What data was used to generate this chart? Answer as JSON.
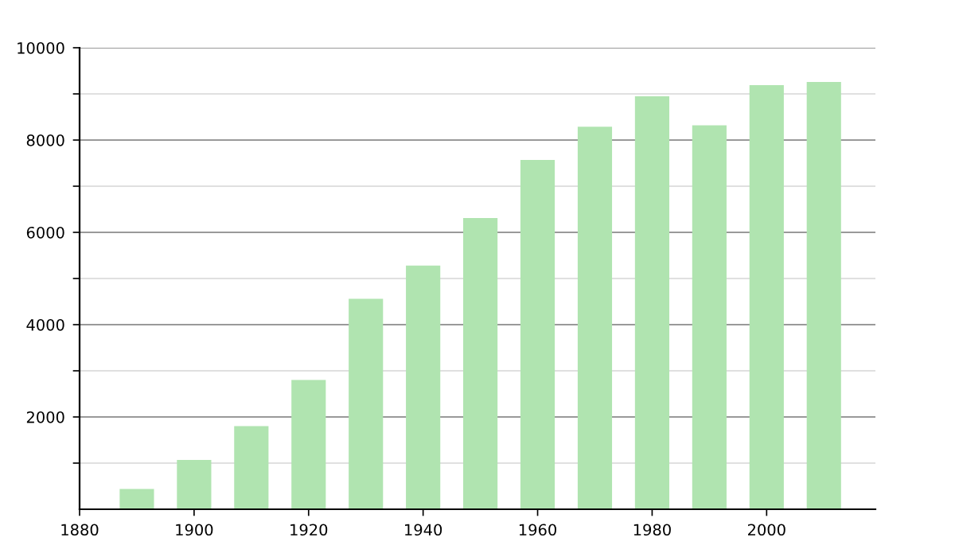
{
  "chart_data": {
    "type": "bar",
    "x": [
      1890,
      1900,
      1910,
      1920,
      1930,
      1940,
      1950,
      1960,
      1970,
      1980,
      1990,
      2000,
      2010
    ],
    "values": [
      440,
      1070,
      1800,
      2800,
      4560,
      5280,
      6310,
      7570,
      8290,
      8950,
      8320,
      9190,
      9260
    ],
    "color": "#b0e4b0",
    "xlim": [
      1880,
      2019
    ],
    "xticks": [
      1880,
      1900,
      1920,
      1940,
      1960,
      1980,
      2000
    ],
    "ylim": [
      0,
      10000
    ],
    "yticks": [
      {
        "value": 1000,
        "label": null
      },
      2000,
      {
        "value": 3000,
        "label": null
      },
      4000,
      {
        "value": 5000,
        "label": null
      },
      6000,
      {
        "value": 7000,
        "label": null
      },
      8000,
      {
        "value": 9000,
        "label": null
      },
      10000
    ],
    "grid": "y",
    "legend": false
  }
}
